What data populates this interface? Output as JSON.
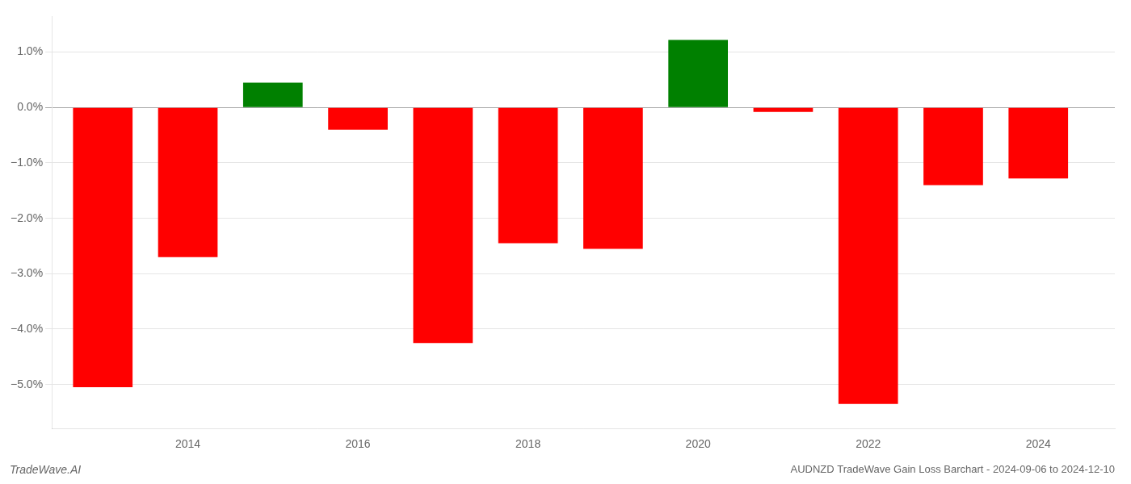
{
  "chart_data": {
    "type": "bar",
    "title": "AUDNZD TradeWave Gain Loss Barchart - 2024-09-06 to 2024-12-10",
    "annotations": [
      "TradeWave.AI"
    ],
    "x": [
      2013,
      2014,
      2015,
      2016,
      2017,
      2018,
      2019,
      2020,
      2021,
      2022,
      2023,
      2024
    ],
    "values": [
      -5.05,
      -2.7,
      0.45,
      -0.4,
      -4.25,
      -2.45,
      -2.55,
      1.22,
      -0.08,
      -5.35,
      -1.4,
      -1.28
    ],
    "colors": [
      "#ff0000",
      "#ff0000",
      "#008000",
      "#ff0000",
      "#ff0000",
      "#ff0000",
      "#ff0000",
      "#008000",
      "#ff0000",
      "#ff0000",
      "#ff0000",
      "#ff0000"
    ],
    "xlim": [
      2012.4,
      2024.9
    ],
    "xticks": [
      2014,
      2016,
      2018,
      2020,
      2022,
      2024
    ],
    "ylim": [
      -5.8,
      1.65
    ],
    "yticks": [
      {
        "value": -5.0,
        "label": "−5.0%"
      },
      {
        "value": -4.0,
        "label": "−4.0%"
      },
      {
        "value": -3.0,
        "label": "−3.0%"
      },
      {
        "value": -2.0,
        "label": "−2.0%"
      },
      {
        "value": -1.0,
        "label": "−1.0%"
      },
      {
        "value": 0.0,
        "label": "0.0%"
      },
      {
        "value": 1.0,
        "label": "1.0%"
      }
    ],
    "grid": true
  }
}
